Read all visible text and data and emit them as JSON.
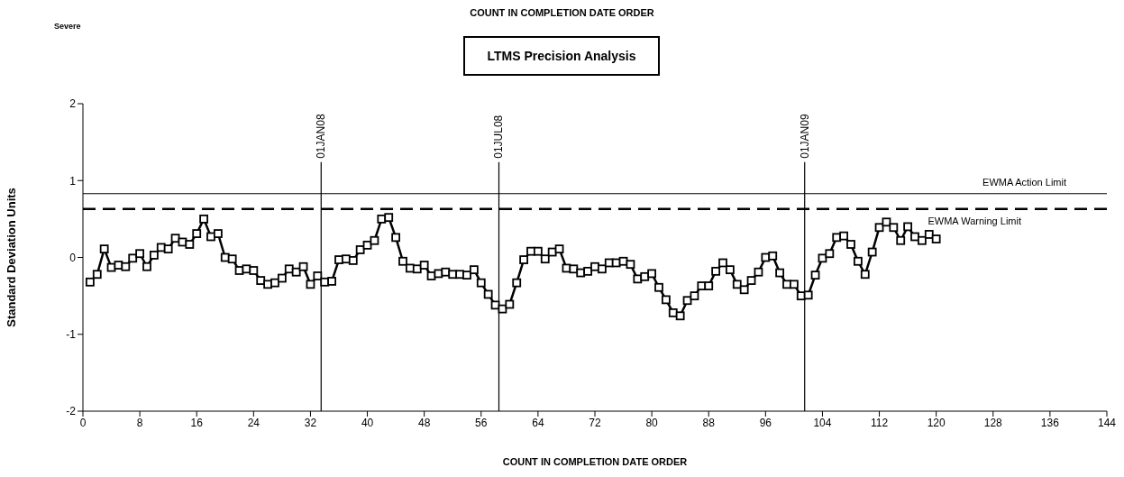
{
  "chart_data": {
    "type": "line",
    "title": "LTMS Precision Analysis",
    "subtitle": "COUNT IN COMPLETION DATE ORDER",
    "xlabel": "COUNT IN COMPLETION DATE ORDER",
    "ylabel": "Standard Deviation Units",
    "annotations": [
      "Severe"
    ],
    "x": [
      1,
      2,
      3,
      4,
      5,
      6,
      7,
      8,
      9,
      10,
      11,
      12,
      13,
      14,
      15,
      16,
      17,
      18,
      19,
      20,
      21,
      22,
      23,
      24,
      25,
      26,
      27,
      28,
      29,
      30,
      31,
      32,
      33,
      34,
      35,
      36,
      37,
      38,
      39,
      40,
      41,
      42,
      43,
      44,
      45,
      46,
      47,
      48,
      49,
      50,
      51,
      52,
      53,
      54,
      55,
      56,
      57,
      58,
      59,
      60,
      61,
      62,
      63,
      64,
      65,
      66,
      67,
      68,
      69,
      70,
      71,
      72,
      73,
      74,
      75,
      76,
      77,
      78,
      79,
      80,
      81,
      82,
      83,
      84,
      85,
      86,
      87,
      88,
      89,
      90,
      91,
      92,
      93,
      94,
      95,
      96,
      97,
      98,
      99,
      100,
      101,
      102,
      103,
      104,
      105,
      106,
      107,
      108,
      109,
      110,
      111,
      112,
      113,
      114,
      115,
      116,
      117,
      118,
      119,
      120
    ],
    "series": [
      {
        "color": "#000000",
        "values": [
          -0.32,
          -0.22,
          0.11,
          -0.13,
          -0.1,
          -0.12,
          -0.01,
          0.05,
          -0.12,
          0.03,
          0.13,
          0.11,
          0.25,
          0.2,
          0.17,
          0.31,
          0.5,
          0.27,
          0.31,
          0.0,
          -0.02,
          -0.17,
          -0.15,
          -0.17,
          -0.3,
          -0.35,
          -0.33,
          -0.27,
          -0.15,
          -0.19,
          -0.12,
          -0.35,
          -0.24,
          -0.32,
          -0.31,
          -0.03,
          -0.02,
          -0.04,
          0.1,
          0.16,
          0.22,
          0.5,
          0.52,
          0.26,
          -0.05,
          -0.14,
          -0.15,
          -0.1,
          -0.24,
          -0.21,
          -0.19,
          -0.22,
          -0.22,
          -0.23,
          -0.16,
          -0.33,
          -0.48,
          -0.62,
          -0.67,
          -0.61,
          -0.33,
          -0.03,
          0.08,
          0.08,
          -0.02,
          0.07,
          0.11,
          -0.14,
          -0.15,
          -0.2,
          -0.18,
          -0.12,
          -0.15,
          -0.07,
          -0.07,
          -0.05,
          -0.09,
          -0.28,
          -0.25,
          -0.21,
          -0.39,
          -0.55,
          -0.72,
          -0.76,
          -0.56,
          -0.5,
          -0.37,
          -0.37,
          -0.18,
          -0.07,
          -0.16,
          -0.35,
          -0.42,
          -0.3,
          -0.19,
          0.0,
          0.02,
          -0.2,
          -0.35,
          -0.35,
          -0.5,
          -0.49,
          -0.23,
          -0.01,
          0.05,
          0.26,
          0.28,
          0.17,
          -0.05,
          -0.22,
          0.07,
          0.39,
          0.46,
          0.39,
          0.22,
          0.4,
          0.27,
          0.22,
          0.3,
          0.24
        ]
      }
    ],
    "xlim": [
      0,
      144
    ],
    "xticks": [
      0,
      8,
      16,
      24,
      32,
      40,
      48,
      56,
      64,
      72,
      80,
      88,
      96,
      104,
      112,
      120,
      128,
      136,
      144
    ],
    "ylim": [
      -2,
      2
    ],
    "yticks": [
      -2,
      -1,
      0,
      1,
      2
    ],
    "ref_lines": [
      {
        "axis": "x",
        "value": 33.5,
        "label": "01JAN08"
      },
      {
        "axis": "x",
        "value": 58.5,
        "label": "01JUL08"
      },
      {
        "axis": "x",
        "value": 101.5,
        "label": "01JAN09"
      },
      {
        "axis": "y",
        "value": 0.83,
        "label": "EWMA Action Limit",
        "line_style": "solid"
      },
      {
        "axis": "y",
        "value": 0.63,
        "label": "EWMA Warning Limit",
        "line_style": "dashed"
      }
    ],
    "marker": "square",
    "line_style": "solid",
    "grid": false
  }
}
